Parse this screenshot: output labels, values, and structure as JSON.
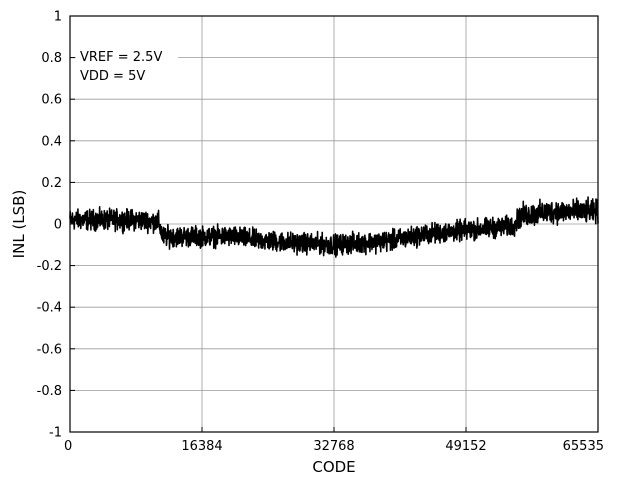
{
  "chart_data": {
    "type": "line",
    "xlabel": "CODE",
    "ylabel": "INL (LSB)",
    "xlim": [
      0,
      65535
    ],
    "ylim": [
      -1,
      1
    ],
    "x_ticks": [
      0,
      16384,
      32768,
      49152,
      65535
    ],
    "x_tick_labels": [
      "0",
      "16384",
      "32768",
      "49152",
      "65535"
    ],
    "y_ticks": [
      1,
      0.8,
      0.6,
      0.4,
      0.2,
      0,
      -0.2,
      -0.4,
      -0.6,
      -0.8,
      -1
    ],
    "y_tick_labels": [
      "1",
      "0.8",
      "0.6",
      "0.4",
      "0.2",
      "0",
      "-0.2",
      "-0.4",
      "-0.6",
      "-0.8",
      "-1"
    ],
    "grid": true,
    "annotations": [
      "VREF = 2.5V",
      "VDD = 5V"
    ],
    "series": [
      {
        "color": "#000000",
        "envelope": {
          "x": [
            0,
            4000,
            8000,
            11000,
            11500,
            16384,
            20000,
            24000,
            28000,
            32768,
            36000,
            40000,
            44000,
            49152,
            52000,
            55000,
            56000,
            60000,
            65535
          ],
          "center": [
            0.02,
            0.02,
            0.02,
            0.01,
            -0.06,
            -0.06,
            -0.06,
            -0.08,
            -0.09,
            -0.1,
            -0.09,
            -0.08,
            -0.05,
            -0.03,
            -0.02,
            -0.01,
            0.04,
            0.06,
            0.06
          ],
          "amplitude": [
            0.07,
            0.07,
            0.07,
            0.07,
            0.07,
            0.07,
            0.07,
            0.07,
            0.07,
            0.07,
            0.07,
            0.07,
            0.07,
            0.07,
            0.07,
            0.07,
            0.08,
            0.08,
            0.08
          ]
        }
      }
    ]
  }
}
